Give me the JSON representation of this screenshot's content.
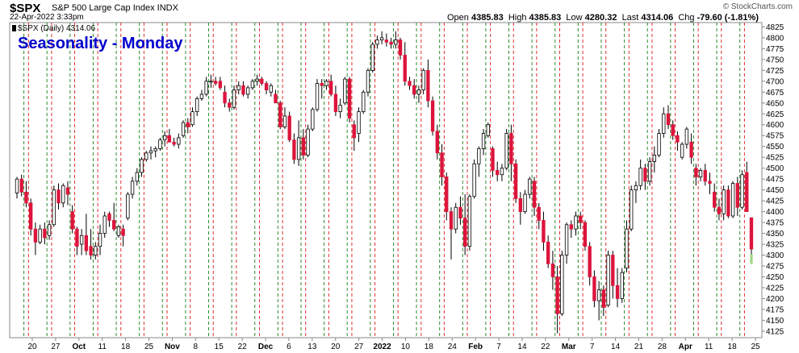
{
  "header": {
    "symbol": "$SPX",
    "name": "S&P 500 Large Cap Index INDX",
    "datetime": "22-Apr-2022 3:33pm",
    "brand": "© StockCharts.com",
    "open_label": "Open",
    "open": "4385.83",
    "high_label": "High",
    "high": "4385.83",
    "low_label": "Low",
    "low": "4280.32",
    "last_label": "Last",
    "last": "4314.06",
    "chg_label": "Chg",
    "chg": "-79.60 (-1.81%)"
  },
  "chart_data": {
    "type": "candlestick",
    "title": "Seasonality - Monday",
    "legend": "$SPX (Daily) 4314.06",
    "ylim": [
      4110,
      4835
    ],
    "yticks": [
      4125,
      4150,
      4175,
      4200,
      4225,
      4250,
      4275,
      4300,
      4325,
      4350,
      4375,
      4400,
      4425,
      4450,
      4475,
      4500,
      4525,
      4550,
      4575,
      4600,
      4625,
      4650,
      4675,
      4700,
      4725,
      4750,
      4775,
      4800,
      4825
    ],
    "xtick_labels": [
      "20",
      "27",
      "Oct",
      "11",
      "18",
      "25",
      "Nov",
      "8",
      "15",
      "22",
      "Dec",
      "6",
      "13",
      "20",
      "27",
      "2022",
      "10",
      "18",
      "24",
      "Feb",
      "7",
      "14",
      "22",
      "Mar",
      "7",
      "14",
      "21",
      "28",
      "Apr",
      "11",
      "18",
      "25"
    ],
    "bold_xticks": [
      "Oct",
      "Nov",
      "Dec",
      "2022",
      "Feb",
      "Mar",
      "Apr"
    ],
    "colors": {
      "up": "#ffffff",
      "down": "#dc143c",
      "up_border": "#000000",
      "wick": "#000000",
      "green_line": "#2e8b2e",
      "red_line": "#e03030",
      "title": "#0000cc",
      "last_candle": "#a6e08a"
    },
    "candles": [
      [
        4443,
        4480,
        4430,
        4475
      ],
      [
        4475,
        4485,
        4435,
        4445
      ],
      [
        4445,
        4470,
        4410,
        4420
      ],
      [
        4420,
        4430,
        4345,
        4360
      ],
      [
        4360,
        4375,
        4300,
        4330
      ],
      [
        4330,
        4370,
        4325,
        4360
      ],
      [
        4360,
        4375,
        4325,
        4340
      ],
      [
        4345,
        4380,
        4335,
        4370
      ],
      [
        4370,
        4460,
        4365,
        4450
      ],
      [
        4450,
        4465,
        4405,
        4420
      ],
      [
        4420,
        4465,
        4410,
        4460
      ],
      [
        4455,
        4470,
        4415,
        4440
      ],
      [
        4400,
        4415,
        4350,
        4360
      ],
      [
        4360,
        4365,
        4300,
        4320
      ],
      [
        4325,
        4360,
        4300,
        4345
      ],
      [
        4345,
        4395,
        4300,
        4310
      ],
      [
        4320,
        4360,
        4290,
        4300
      ],
      [
        4300,
        4330,
        4290,
        4320
      ],
      [
        4320,
        4370,
        4300,
        4350
      ],
      [
        4350,
        4400,
        4340,
        4390
      ],
      [
        4395,
        4400,
        4365,
        4380
      ],
      [
        4380,
        4420,
        4355,
        4360
      ],
      [
        4345,
        4370,
        4340,
        4365
      ],
      [
        4360,
        4370,
        4320,
        4345
      ],
      [
        4385,
        4445,
        4380,
        4440
      ],
      [
        4440,
        4480,
        4430,
        4470
      ],
      [
        4470,
        4500,
        4460,
        4490
      ],
      [
        4490,
        4525,
        4480,
        4520
      ],
      [
        4520,
        4540,
        4515,
        4535
      ],
      [
        4535,
        4550,
        4520,
        4540
      ],
      [
        4540,
        4550,
        4525,
        4545
      ],
      [
        4545,
        4570,
        4540,
        4565
      ],
      [
        4565,
        4585,
        4550,
        4575
      ],
      [
        4575,
        4590,
        4560,
        4560
      ],
      [
        4560,
        4570,
        4550,
        4555
      ],
      [
        4555,
        4580,
        4545,
        4570
      ],
      [
        4575,
        4610,
        4570,
        4605
      ],
      [
        4605,
        4615,
        4580,
        4595
      ],
      [
        4600,
        4640,
        4595,
        4630
      ],
      [
        4630,
        4665,
        4620,
        4660
      ],
      [
        4660,
        4680,
        4655,
        4670
      ],
      [
        4670,
        4710,
        4665,
        4700
      ],
      [
        4700,
        4715,
        4685,
        4700
      ],
      [
        4700,
        4710,
        4690,
        4695
      ],
      [
        4700,
        4710,
        4680,
        4685
      ],
      [
        4675,
        4690,
        4640,
        4650
      ],
      [
        4650,
        4660,
        4630,
        4640
      ],
      [
        4640,
        4690,
        4635,
        4680
      ],
      [
        4680,
        4700,
        4670,
        4690
      ],
      [
        4690,
        4700,
        4665,
        4670
      ],
      [
        4670,
        4690,
        4660,
        4685
      ],
      [
        4685,
        4705,
        4680,
        4700
      ],
      [
        4700,
        4715,
        4690,
        4705
      ],
      [
        4705,
        4710,
        4690,
        4695
      ],
      [
        4695,
        4700,
        4670,
        4680
      ],
      [
        4675,
        4695,
        4665,
        4690
      ],
      [
        4670,
        4680,
        4650,
        4650
      ],
      [
        4650,
        4655,
        4590,
        4595
      ],
      [
        4595,
        4640,
        4590,
        4620
      ],
      [
        4620,
        4630,
        4560,
        4565
      ],
      [
        4565,
        4580,
        4510,
        4520
      ],
      [
        4520,
        4610,
        4505,
        4570
      ],
      [
        4570,
        4590,
        4520,
        4530
      ],
      [
        4530,
        4600,
        4525,
        4590
      ],
      [
        4590,
        4640,
        4585,
        4635
      ],
      [
        4635,
        4705,
        4630,
        4695
      ],
      [
        4695,
        4705,
        4660,
        4690
      ],
      [
        4690,
        4705,
        4680,
        4700
      ],
      [
        4700,
        4715,
        4665,
        4670
      ],
      [
        4670,
        4690,
        4620,
        4630
      ],
      [
        4630,
        4660,
        4615,
        4645
      ],
      [
        4650,
        4710,
        4645,
        4705
      ],
      [
        4705,
        4710,
        4605,
        4615
      ],
      [
        4600,
        4610,
        4540,
        4570
      ],
      [
        4580,
        4640,
        4560,
        4630
      ],
      [
        4630,
        4680,
        4625,
        4675
      ],
      [
        4675,
        4730,
        4665,
        4725
      ],
      [
        4725,
        4790,
        4720,
        4785
      ],
      [
        4785,
        4805,
        4775,
        4795
      ],
      [
        4795,
        4815,
        4785,
        4800
      ],
      [
        4795,
        4810,
        4780,
        4790
      ],
      [
        4790,
        4800,
        4775,
        4785
      ],
      [
        4785,
        4815,
        4775,
        4795
      ],
      [
        4795,
        4800,
        4750,
        4760
      ],
      [
        4760,
        4790,
        4690,
        4700
      ],
      [
        4700,
        4710,
        4680,
        4690
      ],
      [
        4690,
        4705,
        4660,
        4670
      ],
      [
        4670,
        4690,
        4650,
        4680
      ],
      [
        4680,
        4730,
        4670,
        4725
      ],
      [
        4725,
        4750,
        4640,
        4655
      ],
      [
        4655,
        4665,
        4575,
        4585
      ],
      [
        4585,
        4600,
        4520,
        4535
      ],
      [
        4535,
        4555,
        4460,
        4480
      ],
      [
        4480,
        4490,
        4380,
        4400
      ],
      [
        4400,
        4410,
        4290,
        4360
      ],
      [
        4360,
        4420,
        4350,
        4410
      ],
      [
        4410,
        4435,
        4370,
        4385
      ],
      [
        4385,
        4440,
        4300,
        4320
      ],
      [
        4320,
        4440,
        4310,
        4435
      ],
      [
        4435,
        4520,
        4430,
        4510
      ],
      [
        4510,
        4550,
        4480,
        4545
      ],
      [
        4545,
        4590,
        4530,
        4580
      ],
      [
        4575,
        4605,
        4570,
        4600
      ],
      [
        4545,
        4550,
        4480,
        4495
      ],
      [
        4495,
        4515,
        4470,
        4485
      ],
      [
        4485,
        4510,
        4470,
        4500
      ],
      [
        4500,
        4590,
        4495,
        4580
      ],
      [
        4580,
        4600,
        4470,
        4510
      ],
      [
        4510,
        4520,
        4420,
        4430
      ],
      [
        4430,
        4445,
        4370,
        4400
      ],
      [
        4400,
        4450,
        4395,
        4440
      ],
      [
        4440,
        4480,
        4430,
        4475
      ],
      [
        4470,
        4480,
        4390,
        4410
      ],
      [
        4410,
        4420,
        4360,
        4380
      ],
      [
        4380,
        4400,
        4310,
        4330
      ],
      [
        4330,
        4345,
        4270,
        4280
      ],
      [
        4280,
        4310,
        4220,
        4250
      ],
      [
        4250,
        4275,
        4120,
        4165
      ],
      [
        4165,
        4310,
        4160,
        4300
      ],
      [
        4300,
        4375,
        4280,
        4370
      ],
      [
        4370,
        4380,
        4340,
        4360
      ],
      [
        4360,
        4400,
        4345,
        4390
      ],
      [
        4390,
        4400,
        4360,
        4375
      ],
      [
        4375,
        4380,
        4310,
        4320
      ],
      [
        4320,
        4330,
        4230,
        4250
      ],
      [
        4250,
        4265,
        4180,
        4195
      ],
      [
        4195,
        4240,
        4150,
        4220
      ],
      [
        4220,
        4230,
        4160,
        4180
      ],
      [
        4185,
        4310,
        4180,
        4300
      ],
      [
        4300,
        4310,
        4200,
        4230
      ],
      [
        4230,
        4270,
        4180,
        4200
      ],
      [
        4200,
        4270,
        4190,
        4260
      ],
      [
        4270,
        4380,
        4260,
        4360
      ],
      [
        4360,
        4460,
        4355,
        4450
      ],
      [
        4450,
        4470,
        4420,
        4460
      ],
      [
        4460,
        4520,
        4450,
        4500
      ],
      [
        4500,
        4510,
        4450,
        4470
      ],
      [
        4470,
        4525,
        4460,
        4515
      ],
      [
        4515,
        4550,
        4490,
        4530
      ],
      [
        4530,
        4590,
        4525,
        4580
      ],
      [
        4580,
        4640,
        4570,
        4625
      ],
      [
        4625,
        4645,
        4590,
        4600
      ],
      [
        4600,
        4610,
        4565,
        4575
      ],
      [
        4575,
        4585,
        4540,
        4560
      ],
      [
        4525,
        4560,
        4520,
        4555
      ],
      [
        4555,
        4595,
        4545,
        4590
      ],
      [
        4560,
        4580,
        4510,
        4525
      ],
      [
        4500,
        4510,
        4460,
        4480
      ],
      [
        4480,
        4500,
        4470,
        4495
      ],
      [
        4495,
        4510,
        4460,
        4470
      ],
      [
        4470,
        4490,
        4440,
        4465
      ],
      [
        4445,
        4465,
        4400,
        4410
      ],
      [
        4410,
        4430,
        4380,
        4395
      ],
      [
        4395,
        4460,
        4380,
        4450
      ],
      [
        4450,
        4460,
        4385,
        4390
      ],
      [
        4390,
        4470,
        4385,
        4465
      ],
      [
        4465,
        4480,
        4390,
        4410
      ],
      [
        4410,
        4495,
        4405,
        4485
      ],
      [
        4490,
        4515,
        4400,
        4400
      ],
      [
        4386,
        4386,
        4280,
        4314
      ]
    ]
  }
}
